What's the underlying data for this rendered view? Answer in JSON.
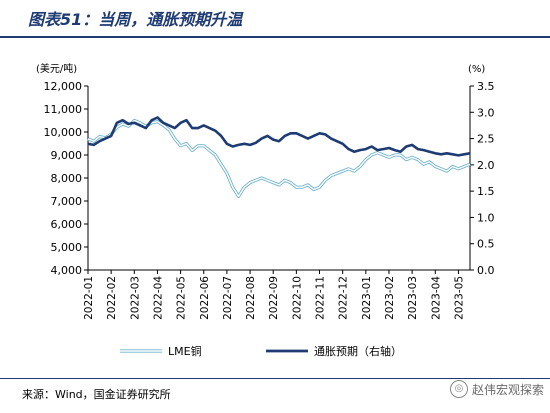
{
  "title": "图表51：当周，通胀预期升温",
  "source": "来源：Wind，国金证券研究所",
  "watermark": "赵伟宏观探索",
  "chart_data": {
    "type": "line",
    "ylabel_left": "(美元/吨)",
    "ylabel_right": "(%)",
    "ylim_left": [
      4000,
      12000
    ],
    "ylim_right": [
      0.0,
      3.5
    ],
    "yticks_left": [
      "4,000",
      "5,000",
      "6,000",
      "7,000",
      "8,000",
      "9,000",
      "10,000",
      "11,000",
      "12,000"
    ],
    "yticks_right": [
      "0.0",
      "0.5",
      "1.0",
      "1.5",
      "2.0",
      "2.5",
      "3.0",
      "3.5"
    ],
    "xticks": [
      "2022-01",
      "2022-02",
      "2022-03",
      "2022-04",
      "2022-05",
      "2022-06",
      "2022-07",
      "2022-08",
      "2022-09",
      "2022-10",
      "2022-11",
      "2022-12",
      "2023-01",
      "2023-02",
      "2023-03",
      "2023-04",
      "2023-05"
    ],
    "legend": [
      "LME铜",
      "通胀预期（右轴）"
    ],
    "colors": {
      "copper": "#9fd3e6",
      "inflation": "#1f3b73"
    },
    "series": [
      {
        "name": "LME铜",
        "axis": "left",
        "x": [
          0,
          0.25,
          0.5,
          0.75,
          1.0,
          1.25,
          1.5,
          1.75,
          2.0,
          2.25,
          2.5,
          2.75,
          3.0,
          3.25,
          3.5,
          3.75,
          4.0,
          4.25,
          4.5,
          4.75,
          5.0,
          5.25,
          5.5,
          5.75,
          6.0,
          6.25,
          6.5,
          6.75,
          7.0,
          7.25,
          7.5,
          7.75,
          8.0,
          8.25,
          8.5,
          8.75,
          9.0,
          9.25,
          9.5,
          9.75,
          10.0,
          10.25,
          10.5,
          10.75,
          11.0,
          11.25,
          11.5,
          11.75,
          12.0,
          12.25,
          12.5,
          12.75,
          13.0,
          13.25,
          13.5,
          13.75,
          14.0,
          14.25,
          14.5,
          14.75,
          15.0,
          15.25,
          15.5,
          15.75,
          16.0,
          16.25,
          16.5
        ],
        "values": [
          9700,
          9600,
          9800,
          9750,
          9900,
          10200,
          10350,
          10250,
          10500,
          10400,
          10250,
          10400,
          10450,
          10300,
          10100,
          9700,
          9400,
          9500,
          9200,
          9400,
          9400,
          9200,
          9000,
          8600,
          8200,
          7600,
          7200,
          7600,
          7800,
          7900,
          8000,
          7900,
          7800,
          7700,
          7900,
          7800,
          7600,
          7600,
          7700,
          7500,
          7600,
          7900,
          8100,
          8200,
          8300,
          8400,
          8300,
          8500,
          8800,
          9000,
          9100,
          9000,
          8900,
          9000,
          9000,
          8800,
          8900,
          8800,
          8600,
          8700,
          8500,
          8400,
          8300,
          8500,
          8400,
          8500,
          8600
        ]
      },
      {
        "name": "通胀预期（右轴）",
        "axis": "right",
        "x": [
          0,
          0.25,
          0.5,
          0.75,
          1.0,
          1.25,
          1.5,
          1.75,
          2.0,
          2.25,
          2.5,
          2.75,
          3.0,
          3.25,
          3.5,
          3.75,
          4.0,
          4.25,
          4.5,
          4.75,
          5.0,
          5.25,
          5.5,
          5.75,
          6.0,
          6.25,
          6.5,
          6.75,
          7.0,
          7.25,
          7.5,
          7.75,
          8.0,
          8.25,
          8.5,
          8.75,
          9.0,
          9.25,
          9.5,
          9.75,
          10.0,
          10.25,
          10.5,
          10.75,
          11.0,
          11.25,
          11.5,
          11.75,
          12.0,
          12.25,
          12.5,
          12.75,
          13.0,
          13.25,
          13.5,
          13.75,
          14.0,
          14.25,
          14.5,
          14.75,
          15.0,
          15.25,
          15.5,
          15.75,
          16.0,
          16.25,
          16.5
        ],
        "values": [
          2.4,
          2.38,
          2.45,
          2.5,
          2.55,
          2.8,
          2.85,
          2.78,
          2.8,
          2.75,
          2.7,
          2.85,
          2.9,
          2.8,
          2.75,
          2.7,
          2.8,
          2.85,
          2.7,
          2.7,
          2.75,
          2.7,
          2.65,
          2.55,
          2.4,
          2.35,
          2.38,
          2.4,
          2.38,
          2.42,
          2.5,
          2.55,
          2.48,
          2.45,
          2.55,
          2.6,
          2.6,
          2.55,
          2.5,
          2.55,
          2.6,
          2.58,
          2.5,
          2.45,
          2.4,
          2.3,
          2.25,
          2.28,
          2.3,
          2.35,
          2.28,
          2.3,
          2.32,
          2.28,
          2.25,
          2.35,
          2.38,
          2.3,
          2.28,
          2.25,
          2.22,
          2.2,
          2.22,
          2.2,
          2.18,
          2.2,
          2.22
        ]
      }
    ]
  }
}
